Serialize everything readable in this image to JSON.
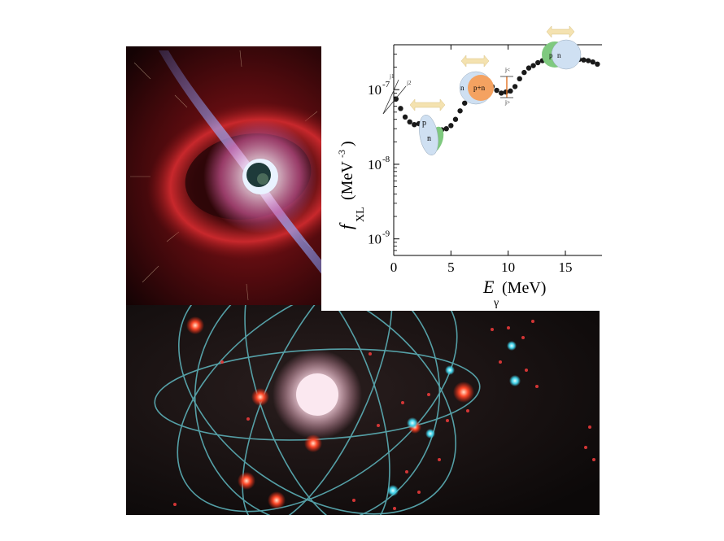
{
  "chart_data": {
    "type": "scatter",
    "xlabel": "E",
    "xlabel_sub": "γ",
    "xunit": "(MeV)",
    "ylabel": "f",
    "ylabel_sub": "XL",
    "yunit": "(MeV",
    "yunit_sup": "-3",
    "yunit_close": ")",
    "ylog": true,
    "xlim": [
      0,
      18.2
    ],
    "ylim": [
      6e-10,
      4e-07
    ],
    "x_ticks": [
      0,
      5,
      10,
      15
    ],
    "x_tick_labels": [
      "0",
      "5",
      "10",
      "15"
    ],
    "y_ticks": [
      1e-09,
      1e-08,
      1e-07
    ],
    "y_tick_labels": [
      {
        "base": "10",
        "exp": "-9"
      },
      {
        "base": "10",
        "exp": "-8"
      },
      {
        "base": "10",
        "exp": "-7"
      }
    ],
    "grid": false,
    "series": [
      {
        "points": [
          [
            0.2,
            7.5e-08
          ],
          [
            0.6,
            5.6e-08
          ],
          [
            1.0,
            4.3e-08
          ],
          [
            1.4,
            3.7e-08
          ],
          [
            1.8,
            3.4e-08
          ],
          [
            2.2,
            3.5e-08
          ],
          [
            2.6,
            3.9e-08
          ],
          [
            3.0,
            3.6e-08
          ],
          [
            3.4,
            3e-08
          ],
          [
            3.8,
            2.8e-08
          ],
          [
            4.2,
            2.9e-08
          ],
          [
            4.6,
            3e-08
          ],
          [
            5.0,
            3.3e-08
          ],
          [
            5.4,
            4e-08
          ],
          [
            5.8,
            5.2e-08
          ],
          [
            6.2,
            6.6e-08
          ],
          [
            6.6,
            7.6e-08
          ],
          [
            7.0,
            8e-08
          ],
          [
            7.4,
            9.2e-08
          ],
          [
            7.8,
            1.1e-07
          ],
          [
            8.2,
            1.2e-07
          ],
          [
            8.6,
            1.1e-07
          ],
          [
            9.0,
            9.8e-08
          ],
          [
            9.4,
            9e-08
          ],
          [
            9.8,
            9.3e-08
          ],
          [
            10.2,
            9.6e-08
          ],
          [
            10.6,
            1.1e-07
          ],
          [
            11.0,
            1.4e-07
          ],
          [
            11.4,
            1.7e-07
          ],
          [
            11.8,
            1.95e-07
          ],
          [
            12.2,
            2.1e-07
          ],
          [
            12.6,
            2.3e-07
          ],
          [
            13.0,
            2.45e-07
          ],
          [
            13.4,
            2.6e-07
          ],
          [
            13.8,
            2.75e-07
          ],
          [
            14.2,
            2.85e-07
          ],
          [
            14.6,
            2.9e-07
          ],
          [
            15.0,
            2.85e-07
          ],
          [
            15.4,
            2.75e-07
          ],
          [
            15.8,
            2.65e-07
          ],
          [
            16.2,
            2.55e-07
          ],
          [
            16.6,
            2.5e-07
          ],
          [
            17.0,
            2.45e-07
          ],
          [
            17.4,
            2.35e-07
          ],
          [
            17.8,
            2.2e-07
          ]
        ]
      }
    ],
    "inset_labels": {
      "spin_j1": "j1",
      "spin_j2": "j2",
      "scissors_p": "p",
      "scissors_n": "n",
      "gdr_n": "n",
      "gdr_pn": "p+n",
      "gdr_j1": "j<",
      "gdr_j2": "j>",
      "overlap_p": "p",
      "overlap_n": "n"
    }
  },
  "colors": {
    "marker": "#1a1a1a",
    "proton": "#7fc97f",
    "neutron": "#cfe0f2",
    "pn_core": "#f4a261",
    "arrow": "#f4e2b0",
    "spin_arrow": "#e07020"
  }
}
